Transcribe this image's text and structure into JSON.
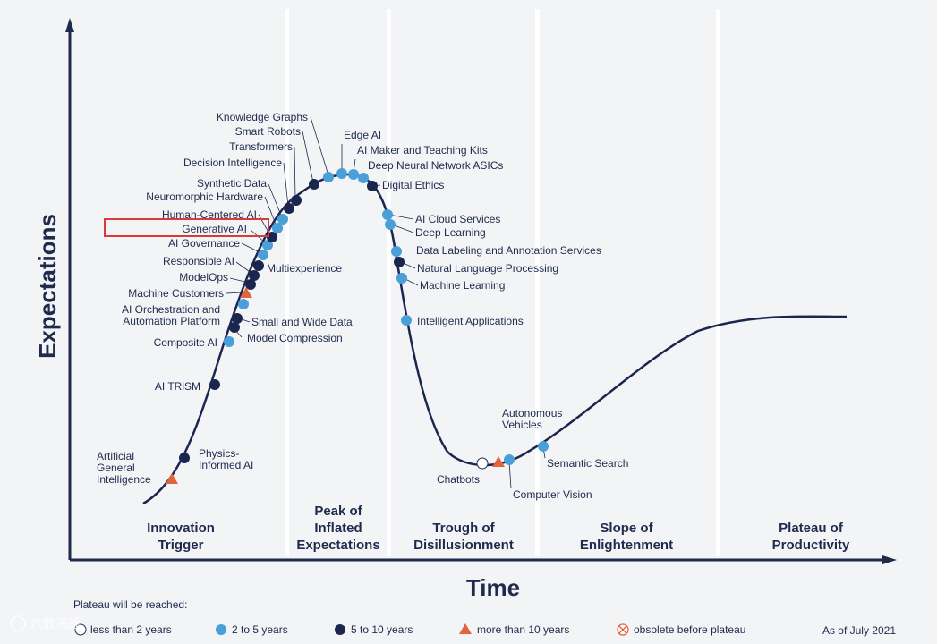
{
  "axes": {
    "y_label": "Expectations",
    "x_label": "Time"
  },
  "phases": [
    {
      "lines": [
        "Innovation",
        "Trigger"
      ]
    },
    {
      "lines": [
        "Peak of",
        "Inflated",
        "Expectations"
      ]
    },
    {
      "lines": [
        "Trough of",
        "Disillusionment"
      ]
    },
    {
      "lines": [
        "Slope of",
        "Enlightenment"
      ]
    },
    {
      "lines": [
        "Plateau of",
        "Productivity"
      ]
    }
  ],
  "colors": {
    "navy": "#1f2a4d",
    "light_blue": "#4a9fd8",
    "dark_blue": "#1b2650",
    "orange": "#e2643a",
    "highlight": "#d93a3a"
  },
  "technologies": [
    {
      "name": "Artificial General Intelligence",
      "lines": [
        "Artificial",
        "General",
        "Intelligence"
      ],
      "category": "more than 10 years"
    },
    {
      "name": "Physics-Informed AI",
      "lines": [
        "Physics-",
        "Informed AI"
      ],
      "category": "5 to 10 years"
    },
    {
      "name": "AI TRiSM",
      "lines": [
        "AI TRiSM"
      ],
      "category": "5 to 10 years"
    },
    {
      "name": "Composite AI",
      "lines": [
        "Composite AI"
      ],
      "category": "2 to 5 years"
    },
    {
      "name": "Model Compression",
      "lines": [
        "Model Compression"
      ],
      "category": "5 to 10 years"
    },
    {
      "name": "Small and Wide Data",
      "lines": [
        "Small and Wide Data"
      ],
      "category": "5 to 10 years"
    },
    {
      "name": "AI Orchestration and Automation Platform",
      "lines": [
        "AI Orchestration and",
        "Automation Platform"
      ],
      "category": "2 to 5 years"
    },
    {
      "name": "Machine Customers",
      "lines": [
        "Machine Customers"
      ],
      "category": "more than 10 years"
    },
    {
      "name": "ModelOps",
      "lines": [
        "ModelOps"
      ],
      "category": "5 to 10 years"
    },
    {
      "name": "Responsible AI",
      "lines": [
        "Responsible AI"
      ],
      "category": "5 to 10 years"
    },
    {
      "name": "Multiexperience",
      "lines": [
        "Multiexperience"
      ],
      "category": "5 to 10 years"
    },
    {
      "name": "AI Governance",
      "lines": [
        "AI Governance"
      ],
      "category": "2 to 5 years"
    },
    {
      "name": "Generative AI",
      "lines": [
        "Generative AI"
      ],
      "category": "2 to 5 years",
      "highlighted": true
    },
    {
      "name": "Human-Centered AI",
      "lines": [
        "Human-Centered AI"
      ],
      "category": "5 to 10 years"
    },
    {
      "name": "Neuromorphic Hardware",
      "lines": [
        "Neuromorphic Hardware"
      ],
      "category": "2 to 5 years"
    },
    {
      "name": "Synthetic Data",
      "lines": [
        "Synthetic Data"
      ],
      "category": "2 to 5 years"
    },
    {
      "name": "Decision Intelligence",
      "lines": [
        "Decision Intelligence"
      ],
      "category": "5 to 10 years"
    },
    {
      "name": "Transformers",
      "lines": [
        "Transformers"
      ],
      "category": "5 to 10 years"
    },
    {
      "name": "Smart Robots",
      "lines": [
        "Smart Robots"
      ],
      "category": "5 to 10 years"
    },
    {
      "name": "Knowledge Graphs",
      "lines": [
        "Knowledge Graphs"
      ],
      "category": "2 to 5 years"
    },
    {
      "name": "Edge AI",
      "lines": [
        "Edge AI"
      ],
      "category": "2 to 5 years"
    },
    {
      "name": "AI Maker and Teaching Kits",
      "lines": [
        "AI Maker and Teaching Kits"
      ],
      "category": "2 to 5 years"
    },
    {
      "name": "Deep Neural Network ASICs",
      "lines": [
        "Deep Neural Network ASICs"
      ],
      "category": "2 to 5 years"
    },
    {
      "name": "Digital Ethics",
      "lines": [
        "Digital Ethics"
      ],
      "category": "5 to 10 years"
    },
    {
      "name": "AI Cloud Services",
      "lines": [
        "AI Cloud Services"
      ],
      "category": "2 to 5 years"
    },
    {
      "name": "Deep Learning",
      "lines": [
        "Deep Learning"
      ],
      "category": "2 to 5 years"
    },
    {
      "name": "Data Labeling and Annotation Services",
      "lines": [
        "Data Labeling and Annotation Services"
      ],
      "category": "2 to 5 years"
    },
    {
      "name": "Natural Language Processing",
      "lines": [
        "Natural Language Processing"
      ],
      "category": "5 to 10 years"
    },
    {
      "name": "Machine Learning",
      "lines": [
        "Machine Learning"
      ],
      "category": "2 to 5 years"
    },
    {
      "name": "Intelligent Applications",
      "lines": [
        "Intelligent Applications"
      ],
      "category": "2 to 5 years"
    },
    {
      "name": "Chatbots",
      "lines": [
        "Chatbots"
      ],
      "category": "less than 2 years"
    },
    {
      "name": "Autonomous Vehicles",
      "lines": [
        "Autonomous",
        "Vehicles"
      ],
      "category": "more than 10 years"
    },
    {
      "name": "Computer Vision",
      "lines": [
        "Computer Vision"
      ],
      "category": "2 to 5 years"
    },
    {
      "name": "Semantic Search",
      "lines": [
        "Semantic Search"
      ],
      "category": "2 to 5 years"
    }
  ],
  "legend": {
    "title": "Plateau will be reached:",
    "items": [
      {
        "label": "less than 2 years",
        "marker": "open-circle"
      },
      {
        "label": "2 to 5 years",
        "marker": "light-blue-dot"
      },
      {
        "label": "5 to 10 years",
        "marker": "dark-blue-dot"
      },
      {
        "label": "more than 10 years",
        "marker": "orange-triangle"
      },
      {
        "label": "obsolete before plateau",
        "marker": "crossed-circle"
      }
    ]
  },
  "as_of": "As of July 2021",
  "watermark": "六数海豚"
}
